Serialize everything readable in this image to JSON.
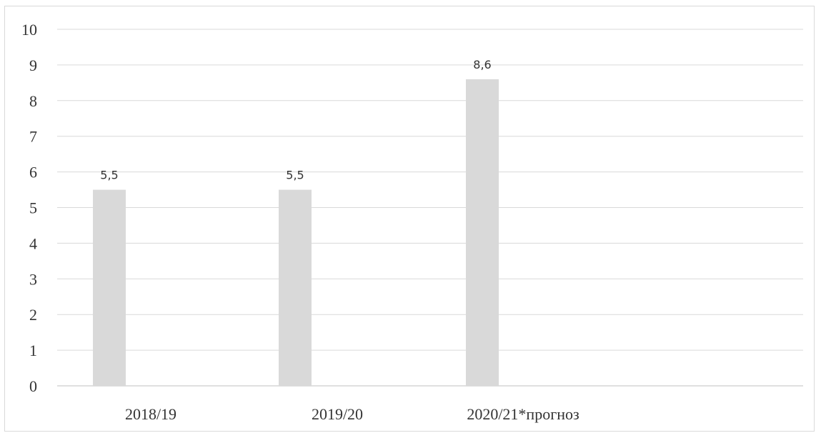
{
  "chart_data": {
    "type": "bar",
    "categories": [
      "2018/19",
      "2019/20",
      "2020/21*прогноз"
    ],
    "values": [
      5.5,
      5.5,
      8.6
    ],
    "data_labels": [
      "5,5",
      "5,5",
      "8,6"
    ],
    "yticks": [
      "0",
      "1",
      "2",
      "3",
      "4",
      "5",
      "6",
      "7",
      "8",
      "9",
      "10"
    ],
    "ylim": [
      0,
      10
    ],
    "grid": true,
    "bar_color": "#d9d9d9",
    "grid_color": "#d9d9d9",
    "axis_color": "#bfbfbf",
    "legend": "none"
  }
}
